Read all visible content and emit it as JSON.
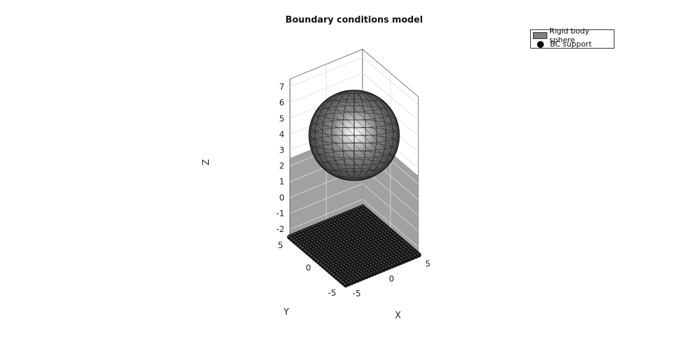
{
  "chart_data": {
    "type": "3d-scatter-surface",
    "title": "Boundary conditions model",
    "xlabel": "X",
    "ylabel": "Y",
    "zlabel": "Z",
    "xlim": [
      -5,
      5
    ],
    "ylim": [
      -5,
      5
    ],
    "zlim": [
      -2.5,
      7.5
    ],
    "x_ticks": [
      "-5",
      "0",
      "5"
    ],
    "y_ticks": [
      "-5",
      "0",
      "5"
    ],
    "z_ticks": [
      "-2",
      "-1",
      "0",
      "1",
      "2",
      "3",
      "4",
      "5",
      "6",
      "7"
    ],
    "grid": true,
    "legend_position": "top-right",
    "legend": [
      {
        "name": "Rigid body sphere",
        "marker": "patch",
        "color": "#808080"
      },
      {
        "name": "BC support",
        "marker": "dot",
        "color": "#000000"
      }
    ],
    "series": [
      {
        "name": "Rigid body sphere",
        "kind": "sphere",
        "center": [
          0,
          0,
          4.5
        ],
        "radius": 3
      },
      {
        "name": "BC support",
        "kind": "point-grid",
        "x_range": [
          -5,
          5
        ],
        "y_range": [
          -5,
          5
        ],
        "z": -2.5,
        "count_per_side": 26
      }
    ],
    "colors": {
      "sphere": "#7a7a7a",
      "points": "#1a1a1a",
      "floor": "#9c9c9c"
    }
  }
}
